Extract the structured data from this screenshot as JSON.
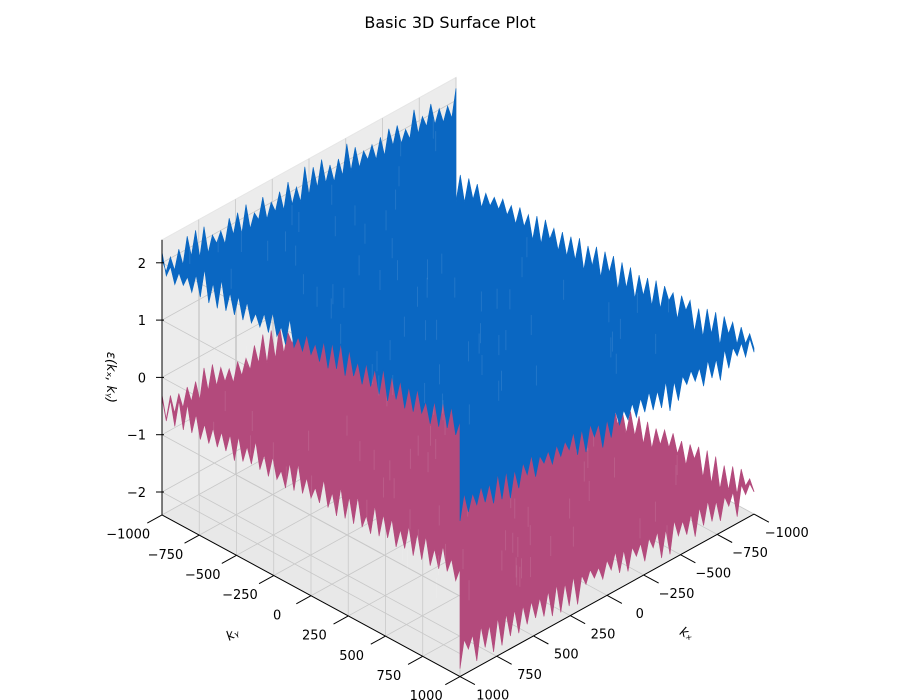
{
  "chart_data": {
    "type": "surface3d",
    "title": "Basic 3D Surface Plot",
    "xlabel": "kₓ",
    "ylabel": "kᵧ",
    "zlabel": "ε(kₓ, kᵧ)",
    "x_ticks": [
      -1000,
      -750,
      -500,
      -250,
      0,
      250,
      500,
      750,
      1000
    ],
    "y_ticks": [
      -1000,
      -750,
      -500,
      -250,
      0,
      250,
      500,
      750,
      1000
    ],
    "z_ticks": [
      -2,
      -1,
      0,
      1,
      2
    ],
    "x_tick_labels": [
      "−1000",
      "−750",
      "−500",
      "−250",
      "0",
      "250",
      "500",
      "750",
      "1000"
    ],
    "y_tick_labels": [
      "−1000",
      "−750",
      "−500",
      "−250",
      "0",
      "250",
      "500",
      "750",
      "1000"
    ],
    "z_tick_labels": [
      "−2",
      "−1",
      "0",
      "1",
      "2"
    ],
    "xlim": [
      -1000,
      1000
    ],
    "ylim": [
      -1000,
      1000
    ],
    "zlim": [
      -2.4,
      2.4
    ],
    "grid": true,
    "series": [
      {
        "band": "upper",
        "color": "#0a67c2",
        "mean": 1.4,
        "range": [
          0.2,
          2.3
        ]
      },
      {
        "band": "lower",
        "color": "#b34a7c",
        "mean": -1.3,
        "range": [
          -2.3,
          -0.2
        ]
      }
    ]
  }
}
